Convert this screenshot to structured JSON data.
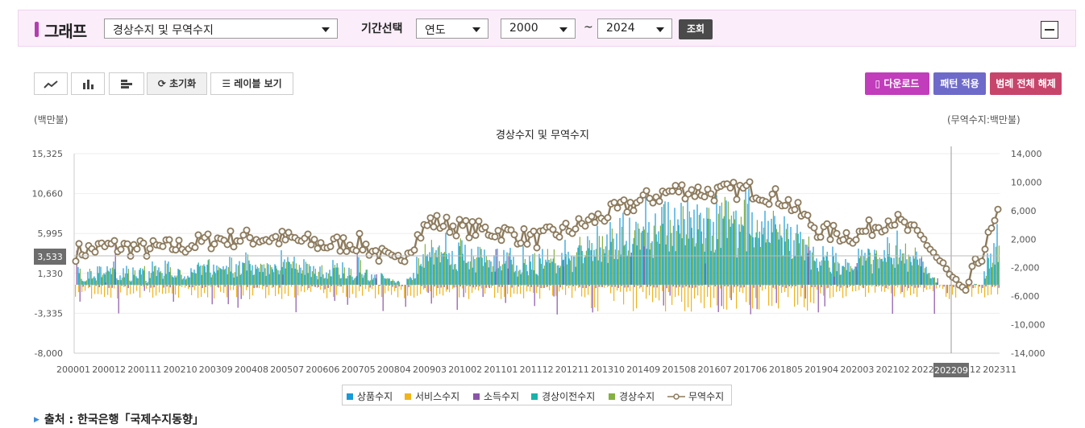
{
  "header": {
    "title": "그래프",
    "indicator_select": "경상수지 및 무역수지",
    "period_label": "기간선택",
    "period_unit": "연도",
    "from_year": "2000",
    "separator": "~",
    "to_year": "2024",
    "search_label": "조회"
  },
  "toolbar": {
    "reset_label": "초기화",
    "label_view_label": "레이블 보기",
    "download_label": "다운로드",
    "pattern_label": "패턴 적용",
    "legend_off_label": "범례 전체 해제"
  },
  "colors": {
    "accent": "#b23fae",
    "download": "#c13dbb",
    "pattern": "#6e6ac9",
    "legend_off": "#c7456b"
  },
  "source": "출처 : 한국은행「국제수지동향」",
  "chart_data": {
    "type": "bar+line",
    "title": "경상수지 및 무역수지",
    "left_unit": "(백만불)",
    "right_unit": "(무역수지:백만불)",
    "left_ticks": [
      "15,325",
      "10,660",
      "5,995",
      "1,330",
      "-3,335",
      "-8,000"
    ],
    "left_range": [
      -8000,
      15325
    ],
    "right_ticks": [
      "14,000",
      "10,000",
      "6,000",
      "2,000",
      "-2,000",
      "-6,000",
      "-10,000",
      "-14,000"
    ],
    "right_range": [
      -14000,
      14000
    ],
    "x_ticks": [
      "200001",
      "200012",
      "200111",
      "200210",
      "200309",
      "200408",
      "200507",
      "200606",
      "200705",
      "200804",
      "200903",
      "201002",
      "201101",
      "201112",
      "201211",
      "201310",
      "201409",
      "201508",
      "201607",
      "201706",
      "201805",
      "201904",
      "202003",
      "202102",
      "202201",
      "202212",
      "202311"
    ],
    "hover_x_label": "202209",
    "hover_y_label": "3,533",
    "legend": [
      {
        "name": "상품수지",
        "color": "#1a9ad8"
      },
      {
        "name": "서비스수지",
        "color": "#f0b41c"
      },
      {
        "name": "소득수지",
        "color": "#8a55a8"
      },
      {
        "name": "경상이전수지",
        "color": "#1ab2a8"
      },
      {
        "name": "경상수지",
        "color": "#85b042"
      },
      {
        "name": "무역수지",
        "color": "#8c7a5c",
        "style": "line-marker"
      }
    ],
    "trade_balance_anchors": [
      {
        "period": "200001",
        "value": 200
      },
      {
        "period": "200012",
        "value": 1000
      },
      {
        "period": "200111",
        "value": 600
      },
      {
        "period": "200210",
        "value": 1000
      },
      {
        "period": "200309",
        "value": 2000
      },
      {
        "period": "200408",
        "value": 2200
      },
      {
        "period": "200507",
        "value": 2000
      },
      {
        "period": "200606",
        "value": 1200
      },
      {
        "period": "200705",
        "value": 1500
      },
      {
        "period": "200804",
        "value": -1500
      },
      {
        "period": "200903",
        "value": 4500
      },
      {
        "period": "201002",
        "value": 3500
      },
      {
        "period": "201101",
        "value": 3000
      },
      {
        "period": "201112",
        "value": 2000
      },
      {
        "period": "201211",
        "value": 3500
      },
      {
        "period": "201310",
        "value": 5500
      },
      {
        "period": "201409",
        "value": 7500
      },
      {
        "period": "201508",
        "value": 9000
      },
      {
        "period": "201607",
        "value": 8500
      },
      {
        "period": "201706",
        "value": 9000
      },
      {
        "period": "201805",
        "value": 7500
      },
      {
        "period": "201904",
        "value": 3000
      },
      {
        "period": "202003",
        "value": 2500
      },
      {
        "period": "202102",
        "value": 5000
      },
      {
        "period": "202201",
        "value": 1500
      },
      {
        "period": "202212",
        "value": -6000
      },
      {
        "period": "202311",
        "value": 5000
      }
    ]
  }
}
